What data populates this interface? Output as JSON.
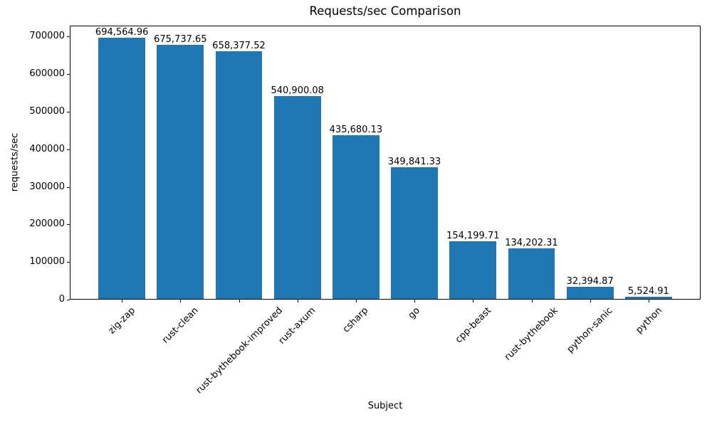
{
  "chart_data": {
    "type": "bar",
    "title": "Requests/sec Comparison",
    "xlabel": "Subject",
    "ylabel": "requests/sec",
    "categories": [
      "zig-zap",
      "rust-clean",
      "rust-bythebook-improved",
      "rust-axum",
      "csharp",
      "go",
      "cpp-beast",
      "rust-bythebook",
      "python-sanic",
      "python"
    ],
    "values": [
      694564.96,
      675737.65,
      658377.52,
      540900.08,
      435680.13,
      349841.33,
      154199.71,
      134202.31,
      32394.87,
      5524.91
    ],
    "value_labels": [
      "694,564.96",
      "675,737.65",
      "658,377.52",
      "540,900.08",
      "435,680.13",
      "349,841.33",
      "154,199.71",
      "134,202.31",
      "32,394.87",
      "5,524.91"
    ],
    "ylim": [
      0,
      729293
    ],
    "yticks": [
      0,
      100000,
      200000,
      300000,
      400000,
      500000,
      600000,
      700000
    ],
    "bar_color": "#1f77b4",
    "grid": false,
    "legend": null,
    "background_color": "#ffffff",
    "text_color": "#000000"
  }
}
